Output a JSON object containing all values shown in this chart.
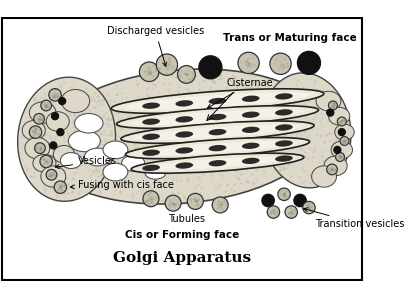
{
  "title": "Golgi Apparatus",
  "labels": {
    "discharged_vesicles": "Discharged vesicles",
    "trans_face": "Trans or Maturing face",
    "cisternae": "Cisternae",
    "vesicles": "Vesicles",
    "fusing": "Fusing with cis face",
    "tubules": "Tubules",
    "cis_face": "Cis or Forming face",
    "transition": "Transition vesicles"
  },
  "bg_color": "#ffffff",
  "golgi_body_fill": "#d8d0b8",
  "golgi_body_edge": "#333333",
  "cisternae_fill": "#e8e0d0",
  "cisternae_edge": "#222222",
  "vesicle_light_fill": "#c8c0a8",
  "vesicle_dark_fill": "#111111",
  "vesicle_edge": "#333333",
  "stipple_color": "#999999",
  "label_fontsize": 7,
  "bold_fontsize": 7.5,
  "title_fontsize": 11
}
